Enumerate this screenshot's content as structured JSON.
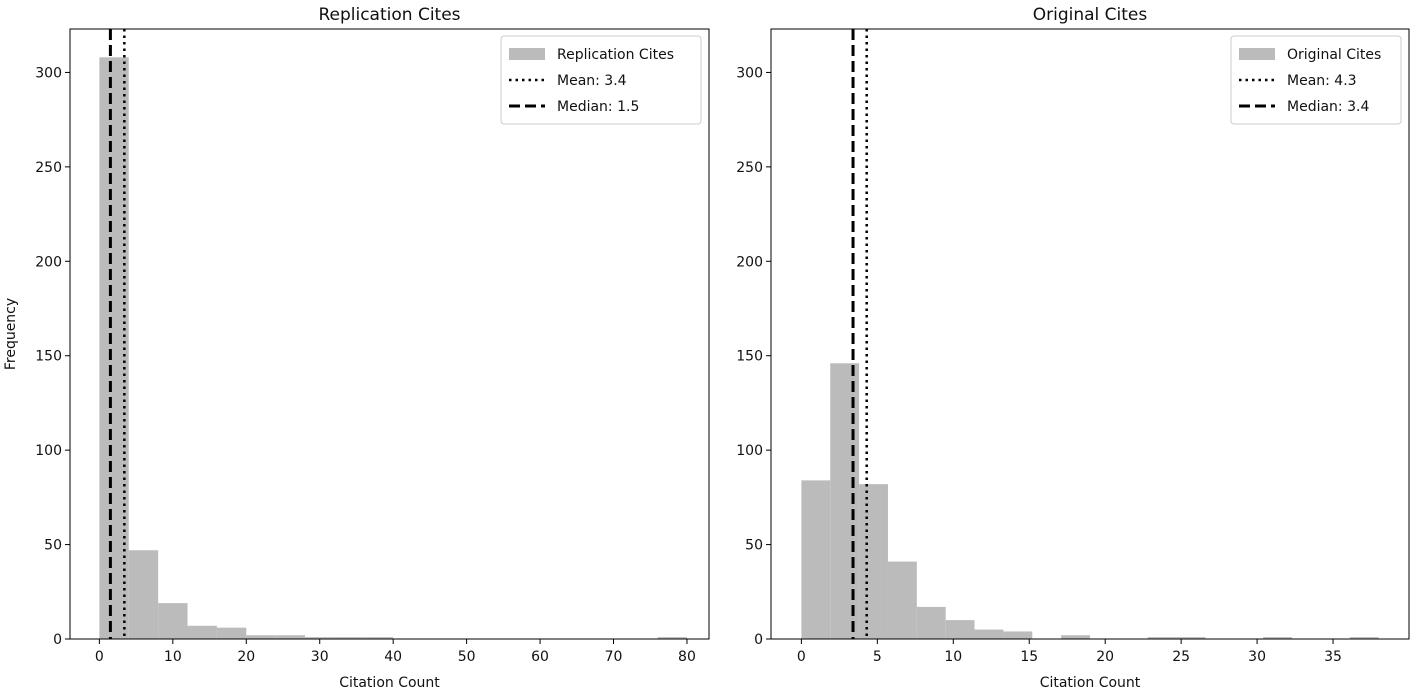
{
  "figure": {
    "ylabel": "Frequency"
  },
  "chart_data": [
    {
      "type": "bar",
      "title": "Replication Cites",
      "xlabel": "Citation Count",
      "ylabel": "Frequency",
      "xlim": [
        -4,
        83
      ],
      "ylim": [
        0,
        323
      ],
      "xticks": [
        0,
        10,
        20,
        30,
        40,
        50,
        60,
        70,
        80
      ],
      "yticks": [
        0,
        50,
        100,
        150,
        200,
        250,
        300
      ],
      "bin_edges": [
        0,
        4,
        8,
        12,
        16,
        20,
        24,
        28,
        32,
        36,
        40,
        44,
        48,
        52,
        56,
        60,
        64,
        68,
        72,
        76,
        80
      ],
      "counts": [
        308,
        47,
        19,
        7,
        6,
        2,
        2,
        1,
        1,
        1,
        0,
        0,
        0,
        0,
        0,
        0,
        0,
        0,
        0,
        1
      ],
      "bar_color": "#bbbbbb",
      "legend_position": "top-right",
      "legend": [
        {
          "kind": "patch",
          "label": "Replication Cites"
        },
        {
          "kind": "dotted",
          "label": "Mean: 3.4"
        },
        {
          "kind": "dashed",
          "label": "Median: 1.5"
        }
      ],
      "vlines": [
        {
          "x": 3.4,
          "style": "dotted"
        },
        {
          "x": 1.5,
          "style": "dashed"
        }
      ]
    },
    {
      "type": "bar",
      "title": "Original Cites",
      "xlabel": "Citation Count",
      "ylabel": "",
      "xlim": [
        -2,
        40
      ],
      "ylim": [
        0,
        323
      ],
      "xticks": [
        0,
        5,
        10,
        15,
        20,
        25,
        30,
        35
      ],
      "yticks": [
        0,
        50,
        100,
        150,
        200,
        250,
        300
      ],
      "bin_edges": [
        0,
        1.9,
        3.8,
        5.7,
        7.6,
        9.5,
        11.4,
        13.3,
        15.2,
        17.1,
        19,
        20.9,
        22.8,
        24.7,
        26.6,
        28.5,
        30.4,
        32.3,
        34.2,
        36.1,
        38
      ],
      "counts": [
        84,
        146,
        82,
        41,
        17,
        10,
        5,
        4,
        0,
        2,
        0,
        0,
        1,
        1,
        0,
        0,
        1,
        0,
        0,
        1
      ],
      "bar_color": "#bbbbbb",
      "legend_position": "top-right",
      "legend": [
        {
          "kind": "patch",
          "label": "Original Cites"
        },
        {
          "kind": "dotted",
          "label": "Mean: 4.3"
        },
        {
          "kind": "dashed",
          "label": "Median: 3.4"
        }
      ],
      "vlines": [
        {
          "x": 4.3,
          "style": "dotted"
        },
        {
          "x": 3.4,
          "style": "dashed"
        }
      ]
    }
  ]
}
